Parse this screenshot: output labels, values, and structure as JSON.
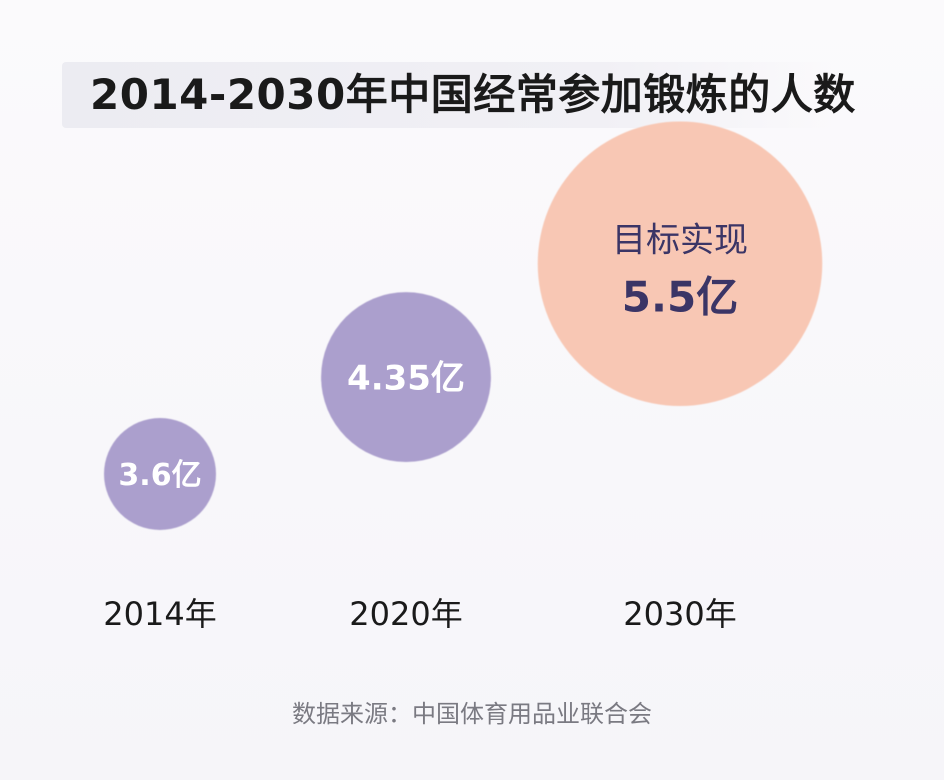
{
  "title": "2014-2030年中国经常参加锻炼的人数",
  "source": "数据来源：中国体育用品业联合会",
  "colors": {
    "actual_bubble": "#ab9fcd",
    "target_bubble": "#f8c7b4",
    "bubble_text_light": "#ffffff",
    "bubble_text_dark": "#3b3566",
    "year_label": "#1a1a1a"
  },
  "chart_data": {
    "type": "scatter",
    "title": "2014-2030年中国经常参加锻炼的人数",
    "x": [
      "2014年",
      "2020年",
      "2030年"
    ],
    "values": [
      3.6,
      4.35,
      5.5
    ],
    "unit": "亿",
    "labels": [
      "3.6亿",
      "4.35亿",
      "5.5亿"
    ],
    "annotation": "目标实现",
    "legend": "none",
    "grid": false
  }
}
